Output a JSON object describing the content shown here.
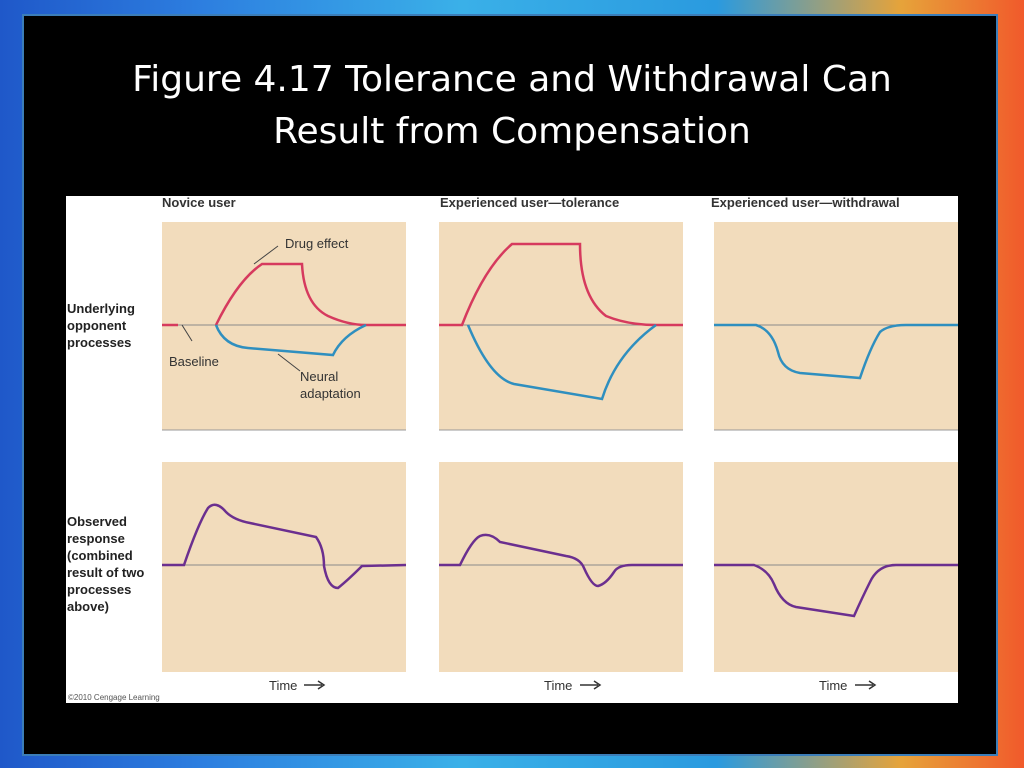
{
  "slide": {
    "title_line1": "Figure 4.17 Tolerance and Withdrawal Can",
    "title_line2": "Result from Compensation"
  },
  "figure": {
    "panel_titles": [
      "Novice user",
      "Experienced user—tolerance",
      "Experienced user—withdrawal"
    ],
    "row_label_top": [
      "Underlying",
      "opponent",
      "processes"
    ],
    "row_label_bottom": [
      "Observed",
      "response",
      "(combined",
      "result of two",
      "processes",
      "above)"
    ],
    "annotations": {
      "drug_effect": "Drug effect",
      "baseline": "Baseline",
      "neural_adaptation_line1": "Neural",
      "neural_adaptation_line2": "adaptation"
    },
    "x_axis_label": "Time",
    "copyright": "©2010 Cengage Learning",
    "colors": {
      "panel_bg": "#f2dcbc",
      "drug_effect": "#d63a5e",
      "neural_adaptation": "#2f8fbf",
      "observed_response": "#6b2f8f",
      "baseline": "#8a8a8a"
    }
  }
}
